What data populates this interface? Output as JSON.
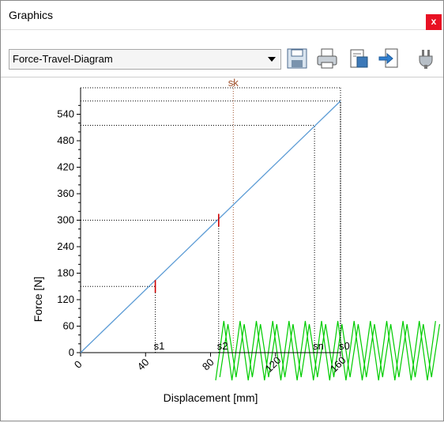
{
  "window": {
    "title": "Graphics",
    "close_label": "x"
  },
  "toolbar": {
    "selected_diagram": "Force-Travel-Diagram",
    "icons": [
      "save-icon",
      "print-icon",
      "clipboard-icon",
      "export-icon",
      "plug-icon"
    ]
  },
  "chart_data": {
    "type": "line",
    "xlabel": "Displacement [mm]",
    "ylabel": "Force [N]",
    "xlim": [
      0,
      160
    ],
    "ylim": [
      0,
      600
    ],
    "x_ticks": [
      0,
      40,
      80,
      120,
      160
    ],
    "y_ticks": [
      0,
      60,
      120,
      180,
      240,
      300,
      360,
      420,
      480,
      540
    ],
    "series": [
      {
        "values": [
          [
            0,
            0
          ],
          [
            160,
            570
          ]
        ],
        "color": "#5b9bd5"
      }
    ],
    "markers": [
      {
        "label": "s1",
        "x": 46,
        "y": 150
      },
      {
        "label": "s2",
        "x": 85,
        "y": 300
      },
      {
        "label": "sk",
        "x": 94,
        "y": null
      },
      {
        "label": "sn",
        "x": 144,
        "y": 515
      },
      {
        "label": "s0",
        "x": 160,
        "y": 570
      }
    ],
    "spring_color": "#00cc00",
    "grid": false
  }
}
